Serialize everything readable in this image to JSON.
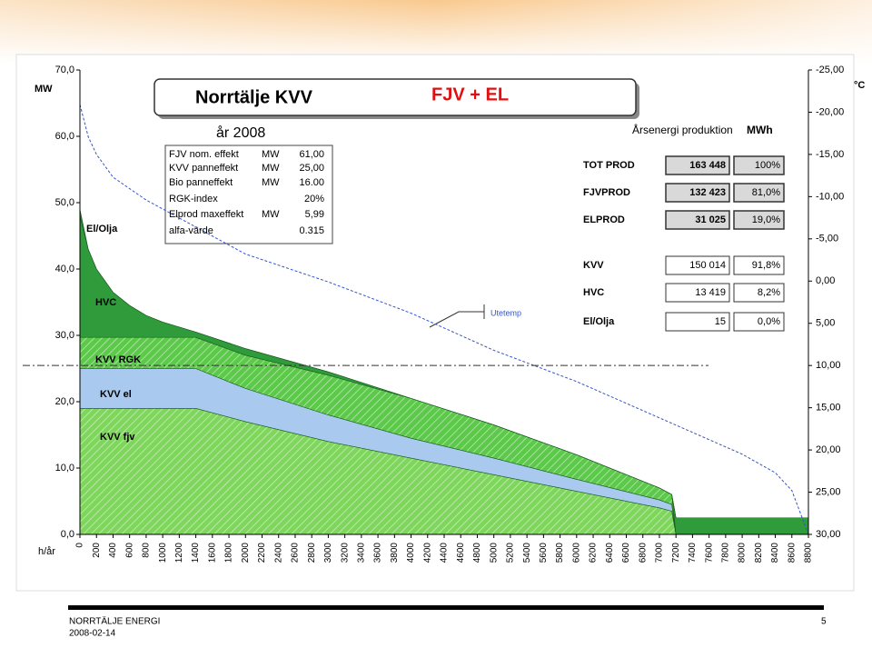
{
  "chart_data": {
    "type": "stacked_area",
    "title": "Norrtälje KVV",
    "subtitle": "FJV + EL",
    "year_label": "år 2008",
    "y_label": "MW",
    "y2_label": "°C",
    "x_label": "h/år",
    "x": [
      0,
      100,
      200,
      400,
      600,
      800,
      1000,
      1400,
      2000,
      3000,
      4000,
      5000,
      6000,
      7000,
      7150,
      7200,
      8800
    ],
    "series": [
      {
        "name": "KVV fjv",
        "color": "#7fd65c",
        "hatch": true,
        "values": [
          19,
          19,
          19,
          19,
          19,
          19,
          19,
          19,
          17,
          14,
          11.5,
          9,
          6.5,
          4,
          3.5,
          0,
          0
        ]
      },
      {
        "name": "KVV el",
        "color": "#a9c9ee",
        "hatch": false,
        "values": [
          6,
          6,
          6,
          6,
          6,
          6,
          6,
          6,
          5,
          4,
          3,
          2.5,
          1.8,
          1.2,
          1,
          0,
          0
        ]
      },
      {
        "name": "KVV RGK",
        "color": "#5cc94a",
        "hatch": true,
        "values": [
          4.7,
          4.7,
          4.7,
          4.7,
          4.7,
          4.7,
          4.7,
          4.7,
          5,
          6,
          6,
          5,
          3.7,
          1.8,
          1.5,
          0,
          0
        ]
      },
      {
        "name": "HVC",
        "color": "#2f9b3a",
        "hatch": false,
        "values": [
          18.3,
          13.3,
          10.3,
          6.8,
          4.8,
          3.3,
          2.3,
          0.8,
          1,
          0.5,
          0,
          0,
          0,
          0,
          0,
          2.5,
          2.5
        ]
      },
      {
        "name": "El/Olja",
        "color": "#2a8a34",
        "hatch": false,
        "values": [
          1,
          0,
          0,
          0,
          0,
          0,
          0,
          0,
          0,
          0,
          0,
          0,
          0,
          0,
          0,
          0,
          0
        ]
      },
      {
        "name": "Utetemp",
        "color": "#3355cc",
        "axis": "y2",
        "x": [
          0,
          100,
          200,
          400,
          800,
          1400,
          2000,
          3000,
          4000,
          5000,
          6000,
          7000,
          8000,
          8400,
          8600,
          8800
        ],
        "values": [
          -20.9,
          -17.1,
          -15,
          -12.3,
          -9.6,
          -6.4,
          -3.2,
          0.1,
          3.8,
          8.2,
          11.9,
          16.2,
          20.5,
          22.7,
          24.8,
          30
        ]
      }
    ],
    "reference_line_y2": 10,
    "xlim": [
      0,
      8800
    ],
    "xticks": [
      0,
      200,
      400,
      600,
      800,
      1000,
      1200,
      1400,
      1600,
      1800,
      2000,
      2200,
      2400,
      2600,
      2800,
      3000,
      3200,
      3400,
      3600,
      3800,
      4000,
      4200,
      4400,
      4600,
      4800,
      5000,
      5200,
      5400,
      5600,
      5800,
      6000,
      6200,
      6400,
      6600,
      6800,
      7000,
      7200,
      7400,
      7600,
      7800,
      8000,
      8200,
      8400,
      8600,
      8800
    ],
    "ylim": [
      0,
      70
    ],
    "yticks": [
      {
        "value": 0,
        "label": "0,0"
      },
      {
        "value": 10,
        "label": "10,0"
      },
      {
        "value": 20,
        "label": "20,0"
      },
      {
        "value": 30,
        "label": "30,0"
      },
      {
        "value": 40,
        "label": "40,0"
      },
      {
        "value": 50,
        "label": "50,0"
      },
      {
        "value": 60,
        "label": "60,0"
      },
      {
        "value": 70,
        "label": "70,0"
      }
    ],
    "y2lim": [
      -25,
      30
    ],
    "y2ticks": [
      {
        "value": -25,
        "label": "-25,00"
      },
      {
        "value": -20,
        "label": "-20,00"
      },
      {
        "value": -15,
        "label": "-15,00"
      },
      {
        "value": -10,
        "label": "-10,00"
      },
      {
        "value": -5,
        "label": "-5,00"
      },
      {
        "value": 0,
        "label": "0,00"
      },
      {
        "value": 5,
        "label": "5,00"
      },
      {
        "value": 10,
        "label": "10,00"
      },
      {
        "value": 15,
        "label": "15,00"
      },
      {
        "value": 20,
        "label": "20,00"
      },
      {
        "value": 25,
        "label": "25,00"
      },
      {
        "value": 30,
        "label": "30,00"
      }
    ],
    "params": [
      {
        "label": "FJV nom. effekt",
        "unit": "MW",
        "value": "61,00"
      },
      {
        "label": "KVV panneffekt",
        "unit": "MW",
        "value": "25,00"
      },
      {
        "label": "Bio panneffekt",
        "unit": "MW",
        "value": "16.00"
      },
      {
        "label": "RGK-index",
        "unit": "",
        "value": "20%"
      },
      {
        "label": "Elprod maxeffekt",
        "unit": "MW",
        "value": "5,99"
      },
      {
        "label": "alfa-värde",
        "unit": "",
        "value": "0.315"
      }
    ],
    "energy_title": "Årsenergi produktion",
    "energy_unit": "MWh",
    "energy": [
      {
        "label": "TOT PROD",
        "mwh": "163 448",
        "share": "100%"
      },
      {
        "label": "FJVPROD",
        "mwh": "132 423",
        "share": "81,0%"
      },
      {
        "label": "ELPROD",
        "mwh": "31 025",
        "share": "19,0%"
      },
      {
        "label": "KVV",
        "mwh": "150 014",
        "share": "91,8%"
      },
      {
        "label": "HVC",
        "mwh": "13 419",
        "share": "8,2%"
      },
      {
        "label": "El/Olja",
        "mwh": "15",
        "share": "0,0%"
      }
    ]
  },
  "footer": {
    "company": "NORRTÄLJE ENERGI",
    "date": "2008-02-14",
    "page": "5"
  }
}
